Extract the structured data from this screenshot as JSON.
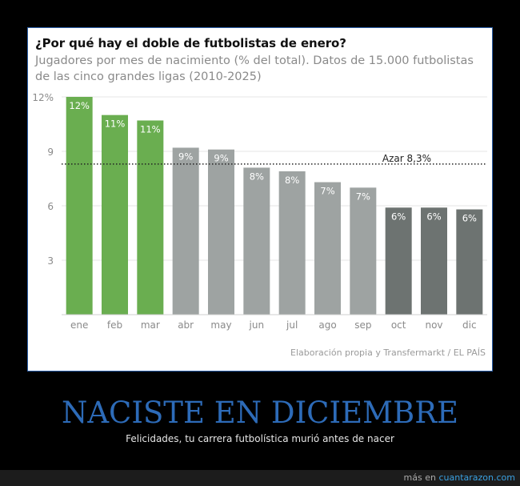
{
  "card": {
    "title": "¿Por qué hay el doble de futbolistas de enero?",
    "subtitle": "Jugadores por mes de nacimiento (% del total). Datos de 15.000 futbolistas de las cinco grandes ligas (2010-2025)",
    "source": "Elaboración propia y Transfermarkt / EL PAÍS"
  },
  "chart_data": {
    "type": "bar",
    "title": "¿Por qué hay el doble de futbolistas de enero?",
    "categories": [
      "ene",
      "feb",
      "mar",
      "abr",
      "may",
      "jun",
      "jul",
      "ago",
      "sep",
      "oct",
      "nov",
      "dic"
    ],
    "values": [
      12.0,
      11.0,
      10.7,
      9.2,
      9.1,
      8.1,
      7.9,
      7.3,
      7.0,
      5.9,
      5.9,
      5.8
    ],
    "value_labels": [
      "12%",
      "11%",
      "11%",
      "9%",
      "9%",
      "8%",
      "8%",
      "7%",
      "7%",
      "6%",
      "6%",
      "6%"
    ],
    "bar_colors": [
      "#6aae50",
      "#6aae50",
      "#6aae50",
      "#9ea3a2",
      "#9ea3a2",
      "#9ea3a2",
      "#9ea3a2",
      "#9ea3a2",
      "#9ea3a2",
      "#6d7371",
      "#6d7371",
      "#6d7371"
    ],
    "yticks": [
      3,
      6,
      9,
      12
    ],
    "ytick_labels": [
      "3",
      "6",
      "9",
      "12%"
    ],
    "ylim": [
      0,
      12
    ],
    "reference_line": {
      "value": 8.3,
      "label": "Azar 8,3%"
    },
    "grid": true
  },
  "banner": {
    "headline": "NACISTE EN DICIEMBRE",
    "caption": "Felicidades, tu carrera futbolística murió antes de nacer"
  },
  "footer": {
    "prefix": "más en",
    "link": "cuantarazon.com"
  }
}
